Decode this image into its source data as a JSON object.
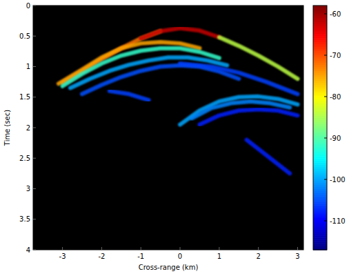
{
  "chart_data": {
    "type": "line",
    "xlabel": "Cross-range (km)",
    "ylabel": "Time (sec)",
    "xlim": [
      -3.75,
      3.15
    ],
    "xticks": [
      -3,
      -2,
      -1,
      0,
      1,
      2,
      3
    ],
    "ylim": [
      4,
      0
    ],
    "yticks": [
      0,
      0.5,
      1,
      1.5,
      2,
      2.5,
      3,
      3.5,
      4
    ],
    "colorbar": {
      "range": [
        -117,
        -58
      ],
      "ticks": [
        -60,
        -70,
        -80,
        -90,
        -100,
        -110
      ]
    },
    "series": [
      {
        "x": [
          -3,
          -2.5,
          -2,
          -1.5,
          -1,
          -0.5
        ],
        "values": [
          1.27,
          1.08,
          0.88,
          0.7,
          0.54,
          0.42
        ],
        "level": -72
      },
      {
        "x": [
          -1,
          -0.5,
          0,
          0.5,
          1
        ],
        "values": [
          0.54,
          0.42,
          0.37,
          0.41,
          0.52
        ],
        "level": -62
      },
      {
        "x": [
          1,
          1.5,
          2,
          2.5,
          3
        ],
        "values": [
          0.52,
          0.66,
          0.82,
          1.0,
          1.2
        ],
        "level": -84
      },
      {
        "x": [
          -3.1,
          -2.5,
          -2,
          -1.5,
          -1,
          -0.5,
          0,
          0.5
        ],
        "values": [
          1.28,
          1.05,
          0.85,
          0.7,
          0.62,
          0.6,
          0.62,
          0.7
        ],
        "level": -75
      },
      {
        "x": [
          -3,
          -2.5,
          -2,
          -1.5,
          -1,
          -0.5,
          0,
          0.5,
          1
        ],
        "values": [
          1.32,
          1.12,
          0.95,
          0.82,
          0.74,
          0.7,
          0.7,
          0.76,
          0.86
        ],
        "level": -92
      },
      {
        "x": [
          -2.8,
          -2.3,
          -1.8,
          -1.3,
          -0.8,
          -0.3,
          0.2,
          0.7,
          1.2
        ],
        "values": [
          1.35,
          1.2,
          1.07,
          0.97,
          0.9,
          0.85,
          0.85,
          0.9,
          0.98
        ],
        "level": -100
      },
      {
        "x": [
          -2.5,
          -2,
          -1.5,
          -1,
          -0.5,
          0,
          0.5,
          1,
          1.5
        ],
        "values": [
          1.45,
          1.3,
          1.17,
          1.07,
          1.0,
          0.98,
          1.0,
          1.08,
          1.2
        ],
        "level": -105
      },
      {
        "x": [
          -1.8,
          -1.3,
          -0.8
        ],
        "values": [
          1.4,
          1.45,
          1.55
        ],
        "level": -106
      },
      {
        "x": [
          0,
          0.8,
          1.5,
          2.2,
          3
        ],
        "values": [
          0.95,
          1.0,
          1.1,
          1.25,
          1.45
        ],
        "level": -106
      },
      {
        "x": [
          0,
          0.5,
          1,
          1.5,
          2,
          2.5,
          3
        ],
        "values": [
          1.95,
          1.72,
          1.57,
          1.5,
          1.49,
          1.53,
          1.62
        ],
        "level": -100
      },
      {
        "x": [
          0.3,
          0.8,
          1.3,
          1.8,
          2.3,
          2.8
        ],
        "values": [
          1.85,
          1.68,
          1.6,
          1.57,
          1.6,
          1.67
        ],
        "level": -102
      },
      {
        "x": [
          0.5,
          1,
          1.5,
          2,
          2.5,
          3
        ],
        "values": [
          1.95,
          1.8,
          1.72,
          1.7,
          1.72,
          1.8
        ],
        "level": -108
      },
      {
        "x": [
          1.7,
          2.8
        ],
        "values": [
          2.2,
          2.75
        ],
        "level": -108
      }
    ]
  }
}
